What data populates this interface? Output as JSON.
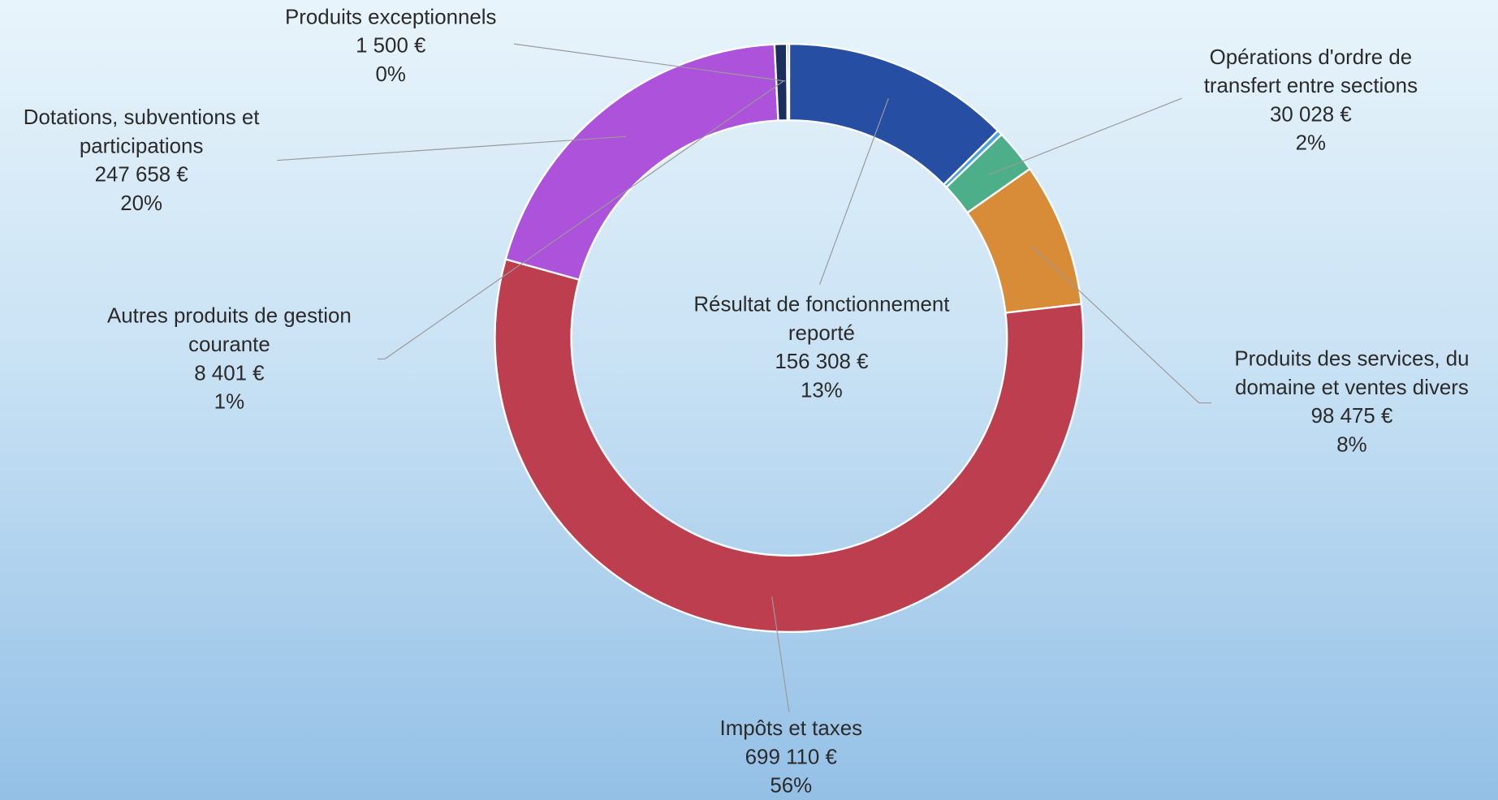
{
  "chart_data": {
    "type": "donut",
    "categories": [
      "Résultat de fonctionnement reporté",
      null,
      "Opérations d'ordre de transfert entre sections",
      "Produits des services, du domaine et ventes divers",
      "Impôts et taxes",
      "Dotations, subventions et participations",
      "Autres produits de gestion courante",
      "Produits exceptionnels"
    ],
    "values": [
      156308,
      3500,
      30028,
      98475,
      699110,
      247658,
      8401,
      1500
    ],
    "value_labels": [
      "156 308 €",
      null,
      "30 028 €",
      "98 475 €",
      "699 110 €",
      "247 658 €",
      "8 401 €",
      "1 500 €"
    ],
    "percent_labels": [
      "13%",
      null,
      "2%",
      "8%",
      "56%",
      "20%",
      "1%",
      "0%"
    ],
    "colors": [
      "#264ea3",
      "#4aa3d8",
      "#4caf8a",
      "#d98c38",
      "#bc3e4f",
      "#ad52db",
      "#1b2f5e",
      "#2a4a9a"
    ]
  }
}
